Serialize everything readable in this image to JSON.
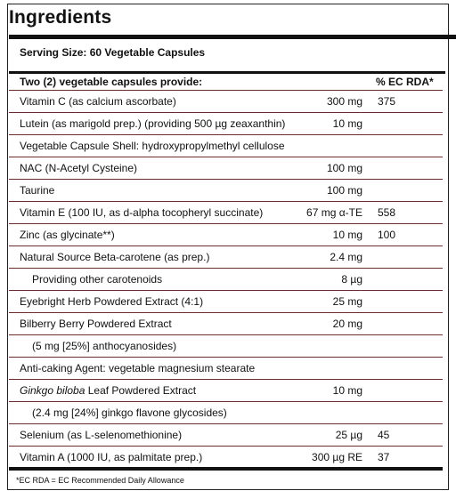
{
  "title": "Ingredients",
  "serving": "Serving Size: 60 Vegetable Capsules",
  "header": {
    "label": "Two (2) vegetable capsules provide:",
    "rda": "% EC RDA*"
  },
  "rows": [
    {
      "pre": "",
      "name": "Vitamin C (as calcium ascorbate)",
      "amount": "300 mg",
      "rda": "375"
    },
    {
      "pre": "",
      "name": "Lutein (as marigold prep.) (providing 500 µg zeaxanthin)",
      "amount": "10 mg",
      "rda": ""
    },
    {
      "pre": "",
      "name": "Vegetable Capsule Shell: hydroxypropylmethyl cellulose",
      "amount": "",
      "rda": ""
    },
    {
      "pre": "",
      "name": "NAC (N-Acetyl Cysteine)",
      "amount": "100 mg",
      "rda": ""
    },
    {
      "pre": "",
      "name": "Taurine",
      "amount": "100 mg",
      "rda": ""
    },
    {
      "pre": "",
      "name": "Vitamin E (100 IU, as d-alpha tocopheryl succinate)",
      "amount": "67 mg α-TE",
      "rda": "558"
    },
    {
      "pre": "",
      "name": "Zinc (as glycinate**)",
      "amount": "10 mg",
      "rda": "100"
    },
    {
      "pre": "",
      "name": "Natural Source Beta-carotene (as prep.)",
      "amount": "2.4 mg",
      "rda": ""
    },
    {
      "pre": "",
      "name": "Providing other carotenoids",
      "amount": "8 µg",
      "rda": "",
      "indent": true
    },
    {
      "pre": "",
      "name": "Eyebright Herb Powdered Extract (4:1)",
      "amount": "25 mg",
      "rda": ""
    },
    {
      "pre": "",
      "name": "Bilberry Berry Powdered Extract",
      "amount": "20 mg",
      "rda": ""
    },
    {
      "pre": "",
      "name": "(5 mg [25%] anthocyanosides)",
      "amount": "",
      "rda": "",
      "indent": true
    },
    {
      "pre": "",
      "name": "Anti-caking Agent: vegetable magnesium stearate",
      "amount": "",
      "rda": ""
    },
    {
      "pre": "Ginkgo biloba",
      "name": " Leaf Powdered Extract",
      "amount": "10 mg",
      "rda": ""
    },
    {
      "pre": "",
      "name": "(2.4 mg [24%] ginkgo flavone glycosides)",
      "amount": "",
      "rda": "",
      "indent": true
    },
    {
      "pre": "",
      "name": "Selenium (as L-selenomethionine)",
      "amount": "25 µg",
      "rda": "45"
    },
    {
      "pre": "",
      "name": "Vitamin A (1000 IU, as palmitate prep.)",
      "amount": "300 µg RE",
      "rda": "37"
    }
  ],
  "footnote": "*EC RDA = EC Recommended Daily Allowance"
}
